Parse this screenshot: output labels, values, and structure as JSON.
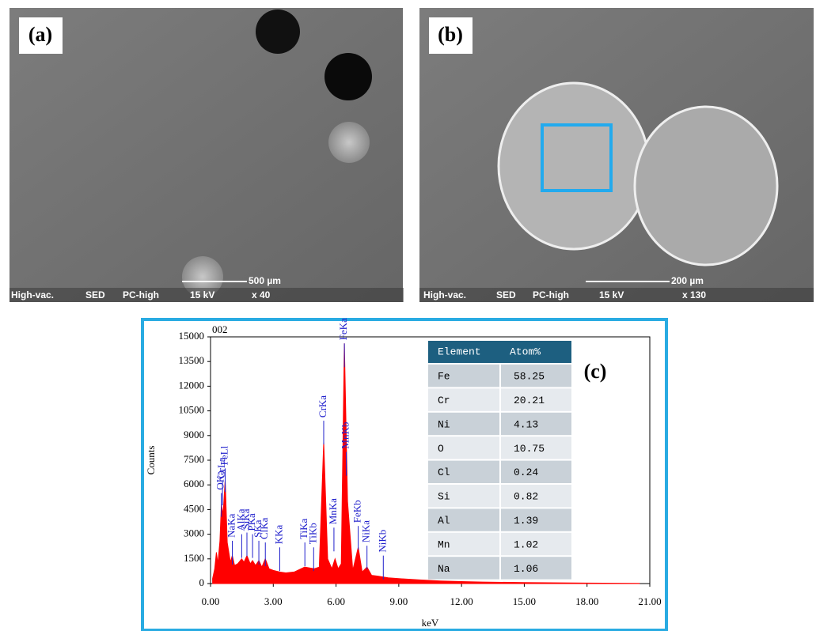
{
  "panels": [
    {
      "label": "(a)",
      "footer": [
        "High-vac.",
        "SED",
        "PC-high",
        "15 kV",
        "x 40"
      ],
      "scale": "500 µm"
    },
    {
      "label": "(b)",
      "footer": [
        "High-vac.",
        "SED",
        "PC-high",
        "15 kV",
        "x 130"
      ],
      "scale": "200 µm"
    }
  ],
  "chart_data": {
    "type": "area",
    "label": "(c)",
    "title": "002",
    "y_label": "Counts",
    "x_label": "keV",
    "color": "#ff0000",
    "xlim": [
      0,
      21
    ],
    "ylim": [
      0,
      15000
    ],
    "xticks": [
      {
        "value": 0,
        "label": "0.00"
      },
      {
        "value": 3,
        "label": "3.00"
      },
      {
        "value": 6,
        "label": "6.00"
      },
      {
        "value": 9,
        "label": "9.00"
      },
      {
        "value": 12,
        "label": "12.00"
      },
      {
        "value": 15,
        "label": "15.00"
      },
      {
        "value": 18,
        "label": "18.00"
      },
      {
        "value": 21,
        "label": "21.00"
      }
    ],
    "yticks": [
      0,
      1500,
      3000,
      4500,
      6000,
      7500,
      9000,
      10500,
      12000,
      13500,
      15000
    ],
    "x": [
      0.1,
      0.2,
      0.28,
      0.35,
      0.45,
      0.52,
      0.6,
      0.7,
      0.8,
      0.95,
      1.04,
      1.15,
      1.3,
      1.49,
      1.6,
      1.74,
      1.9,
      2.01,
      2.15,
      2.31,
      2.45,
      2.62,
      2.8,
      3.0,
      3.3,
      3.6,
      4.0,
      4.5,
      4.95,
      5.2,
      5.41,
      5.6,
      5.8,
      5.95,
      6.1,
      6.25,
      6.4,
      6.55,
      6.8,
      7.06,
      7.25,
      7.48,
      7.7,
      8.0,
      8.5,
      9,
      10,
      11,
      12,
      13,
      15,
      18,
      20.5
    ],
    "values": [
      300,
      900,
      1900,
      1200,
      2600,
      4800,
      4200,
      6300,
      2500,
      1300,
      1700,
      1100,
      1200,
      1500,
      1300,
      1700,
      1200,
      1400,
      1100,
      1400,
      1000,
      1500,
      900,
      800,
      700,
      650,
      700,
      1000,
      900,
      1000,
      8600,
      1500,
      900,
      1500,
      900,
      1200,
      14600,
      5000,
      800,
      2200,
      700,
      1000,
      500,
      450,
      350,
      300,
      220,
      160,
      120,
      90,
      60,
      30,
      10
    ],
    "peaks": [
      {
        "label": "OKa",
        "x": 0.52,
        "y": 5500
      },
      {
        "label": "CrLa",
        "x": 0.57,
        "y": 6200
      },
      {
        "label": "FeLl",
        "x": 0.7,
        "y": 7000
      },
      {
        "label": "NaKa",
        "x": 1.04,
        "y": 2600
      },
      {
        "label": "AlKa",
        "x": 1.49,
        "y": 3000
      },
      {
        "label": "SiKa",
        "x": 1.74,
        "y": 3100
      },
      {
        "label": "PKa",
        "x": 2.01,
        "y": 3000
      },
      {
        "label": "SKa",
        "x": 2.31,
        "y": 2600
      },
      {
        "label": "ClKa",
        "x": 2.62,
        "y": 2500
      },
      {
        "label": "KKa",
        "x": 3.31,
        "y": 2200
      },
      {
        "label": "TiKa",
        "x": 4.51,
        "y": 2500
      },
      {
        "label": "TiKb",
        "x": 4.93,
        "y": 2200
      },
      {
        "label": "CrKa",
        "x": 5.41,
        "y": 9900
      },
      {
        "label": "MnKa",
        "x": 5.9,
        "y": 3400
      },
      {
        "label": "FeKa",
        "x": 6.4,
        "y": 14600
      },
      {
        "label": "MnKb",
        "x": 6.49,
        "y": 8000
      },
      {
        "label": "FeKb",
        "x": 7.06,
        "y": 3500
      },
      {
        "label": "NiKa",
        "x": 7.48,
        "y": 2300
      },
      {
        "label": "NiKb",
        "x": 8.26,
        "y": 1700
      }
    ]
  },
  "table": {
    "columns": [
      "Element",
      "Atom%"
    ],
    "rows": [
      [
        "Fe",
        "58.25"
      ],
      [
        "Cr",
        "20.21"
      ],
      [
        "Ni",
        "4.13"
      ],
      [
        "O",
        "10.75"
      ],
      [
        "Cl",
        "0.24"
      ],
      [
        "Si",
        "0.82"
      ],
      [
        "Al",
        "1.39"
      ],
      [
        "Mn",
        "1.02"
      ],
      [
        "Na",
        "1.06"
      ]
    ]
  }
}
